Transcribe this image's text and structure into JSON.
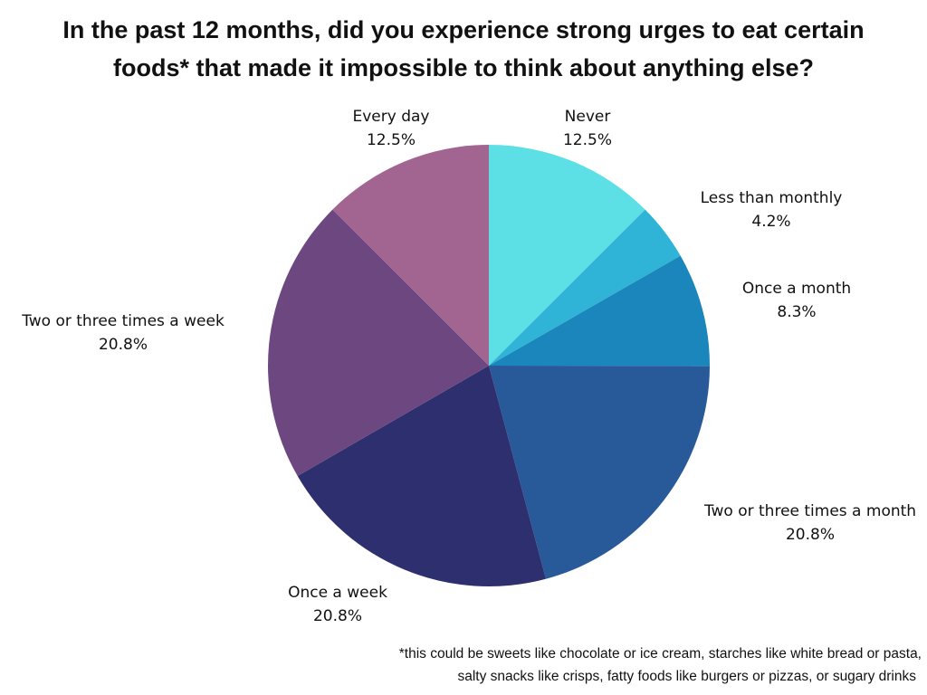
{
  "title": {
    "line1": "In the past 12 months, did you experience strong urges to eat certain",
    "line2": "foods* that made it impossible to think about anything else?"
  },
  "footnote": {
    "line1": "*this could be sweets like chocolate or ice cream, starches like white bread or pasta,",
    "line2": "salty snacks like crisps, fatty foods like burgers or pizzas, or sugary drinks"
  },
  "chart_data": {
    "type": "pie",
    "start_angle": "12 o'clock",
    "direction": "clockwise",
    "slices": [
      {
        "label": "Never",
        "value": 12.5,
        "value_label": "12.5%",
        "color": "#5ce0e6"
      },
      {
        "label": "Less than monthly",
        "value": 4.2,
        "value_label": "4.2%",
        "color": "#2fb3d6"
      },
      {
        "label": "Once a month",
        "value": 8.3,
        "value_label": "8.3%",
        "color": "#1b86bb"
      },
      {
        "label": "Two or three times a month",
        "value": 20.8,
        "value_label": "20.8%",
        "color": "#285a9a"
      },
      {
        "label": "Once a week",
        "value": 20.8,
        "value_label": "20.8%",
        "color": "#2e2f6e"
      },
      {
        "label": "Two or three times a week",
        "value": 20.8,
        "value_label": "20.8%",
        "color": "#6d4880"
      },
      {
        "label": "Every day",
        "value": 12.5,
        "value_label": "12.5%",
        "color": "#a26591"
      }
    ]
  }
}
